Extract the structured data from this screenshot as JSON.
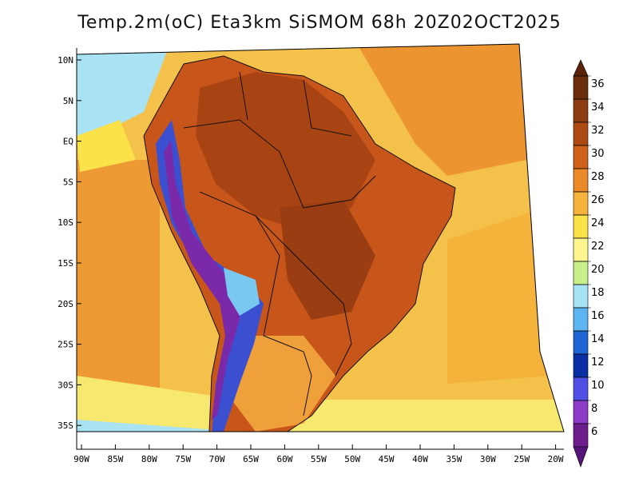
{
  "title": "Temp.2m(oC) Eta3km SiSMOM 68h 20Z02OCT2025",
  "lat_labels": [
    "10N",
    "5N",
    "EQ",
    "5S",
    "10S",
    "15S",
    "20S",
    "25S",
    "30S",
    "35S"
  ],
  "lon_labels": [
    "90W",
    "85W",
    "80W",
    "75W",
    "70W",
    "65W",
    "60W",
    "55W",
    "50W",
    "45W",
    "40W",
    "35W",
    "30W",
    "25W",
    "20W"
  ],
  "colorbar": {
    "labels": [
      "36",
      "34",
      "32",
      "30",
      "28",
      "26",
      "24",
      "22",
      "20",
      "18",
      "16",
      "14",
      "12",
      "10",
      "8",
      "6"
    ],
    "colors": [
      "#6b2e0c",
      "#8c3b12",
      "#b04a15",
      "#d0601a",
      "#ec8a2a",
      "#f5b33c",
      "#fbe14a",
      "#fdf58e",
      "#c8f08a",
      "#a7e3f5",
      "#5cb4f0",
      "#1e64d2",
      "#0a2ea6",
      "#5050e6",
      "#8c3cc8",
      "#6e1e8c"
    ],
    "top_cap": "#5a230a",
    "bottom_cap": "#551478"
  }
}
